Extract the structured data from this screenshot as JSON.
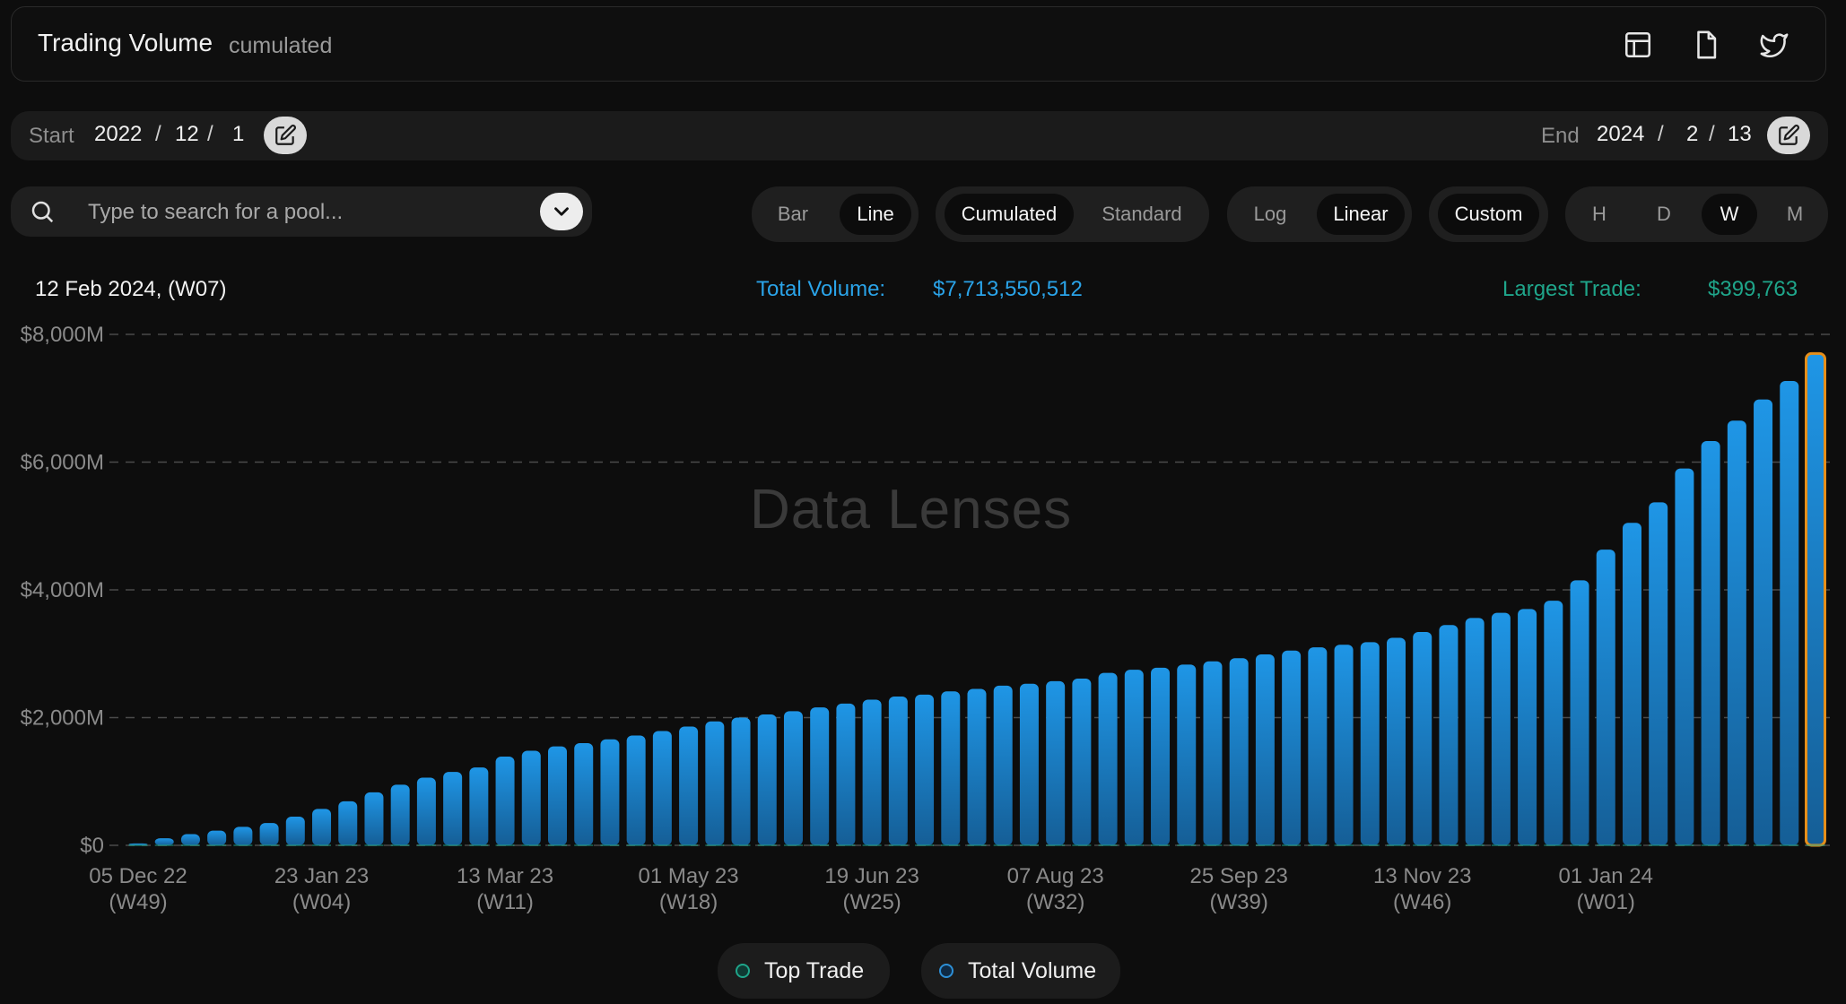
{
  "header": {
    "title": "Trading Volume",
    "subtitle": "cumulated"
  },
  "dates": {
    "start_label": "Start",
    "start_year": "2022",
    "start_month": "12",
    "start_day": "1",
    "end_label": "End",
    "end_year": "2024",
    "end_month": "2",
    "end_day": "13",
    "separator": "/"
  },
  "search": {
    "placeholder": "Type to search for a pool..."
  },
  "controls": {
    "chart_type": [
      "Bar",
      "Line"
    ],
    "chart_type_active": "Line",
    "mode": [
      "Cumulated",
      "Standard"
    ],
    "mode_active": "Cumulated",
    "scale": [
      "Log",
      "Linear"
    ],
    "scale_active": "Linear",
    "custom": "Custom",
    "interval": [
      "H",
      "D",
      "W",
      "M"
    ],
    "interval_active": "W"
  },
  "info": {
    "date": "12 Feb 2024, (W07)",
    "total_label": "Total Volume:",
    "total_value": "$7,713,550,512",
    "largest_label": "Largest Trade:",
    "largest_value": "$399,763"
  },
  "watermark": "Data Lenses",
  "legend": [
    {
      "name": "Top Trade",
      "color": "#1fa58a"
    },
    {
      "name": "Total Volume",
      "color": "#2d8fd6"
    }
  ],
  "colors": {
    "bar": "#1a86cf",
    "highlight": "#e58e1a",
    "total": "#2aa3e8",
    "largest": "#1fa58a"
  },
  "chart_data": {
    "type": "bar",
    "title": "Trading Volume",
    "ylim": [
      0,
      8000
    ],
    "y_unit": "M USD",
    "yticks": [
      "$0",
      "$2,000M",
      "$4,000M",
      "$6,000M",
      "$8,000M"
    ],
    "xticks": [
      [
        "05 Dec 22",
        "(W49)"
      ],
      [
        "23 Jan 23",
        "(W04)"
      ],
      [
        "13 Mar 23",
        "(W11)"
      ],
      [
        "01 May 23",
        "(W18)"
      ],
      [
        "19 Jun 23",
        "(W25)"
      ],
      [
        "07 Aug 23",
        "(W32)"
      ],
      [
        "25 Sep 23",
        "(W39)"
      ],
      [
        "13 Nov 23",
        "(W46)"
      ],
      [
        "01 Jan 24",
        "(W01)"
      ]
    ],
    "xtick_bar_index": [
      0,
      7,
      14,
      21,
      28,
      35,
      42,
      49,
      56
    ],
    "grid": true,
    "legend_position": "bottom",
    "series": [
      {
        "name": "Total Volume",
        "values": [
          30,
          110,
          175,
          230,
          290,
          350,
          450,
          570,
          690,
          830,
          950,
          1060,
          1150,
          1220,
          1390,
          1480,
          1550,
          1600,
          1660,
          1720,
          1790,
          1860,
          1940,
          2000,
          2050,
          2100,
          2160,
          2220,
          2280,
          2330,
          2360,
          2410,
          2450,
          2500,
          2530,
          2570,
          2610,
          2700,
          2750,
          2780,
          2830,
          2880,
          2930,
          2990,
          3050,
          3100,
          3140,
          3180,
          3250,
          3340,
          3450,
          3560,
          3640,
          3700,
          3830,
          4150,
          4630,
          5050,
          5370,
          5900,
          6330,
          6650,
          6980,
          7270,
          7700
        ]
      },
      {
        "name": "Top Trade",
        "values": [
          0.4,
          0.4,
          0.4,
          0.4,
          0.4,
          0.4,
          0.4,
          0.4,
          0.4,
          0.4,
          0.4,
          0.4,
          0.4,
          0.4,
          0.4,
          0.4,
          0.4,
          0.4,
          0.4,
          0.4,
          0.4,
          0.4,
          0.4,
          0.4,
          0.4,
          0.4,
          0.4,
          0.4,
          0.4,
          0.4,
          0.4,
          0.4,
          0.4,
          0.4,
          0.4,
          0.4,
          0.4,
          0.4,
          0.4,
          0.4,
          0.4,
          0.4,
          0.4,
          0.4,
          0.4,
          0.4,
          0.4,
          0.4,
          0.4,
          0.4,
          0.4,
          0.4,
          0.4,
          0.4,
          0.4,
          0.4,
          0.4,
          0.4,
          0.4,
          0.4,
          0.4,
          0.4,
          0.4,
          0.4,
          0.4
        ]
      }
    ],
    "highlight_index": 64
  }
}
